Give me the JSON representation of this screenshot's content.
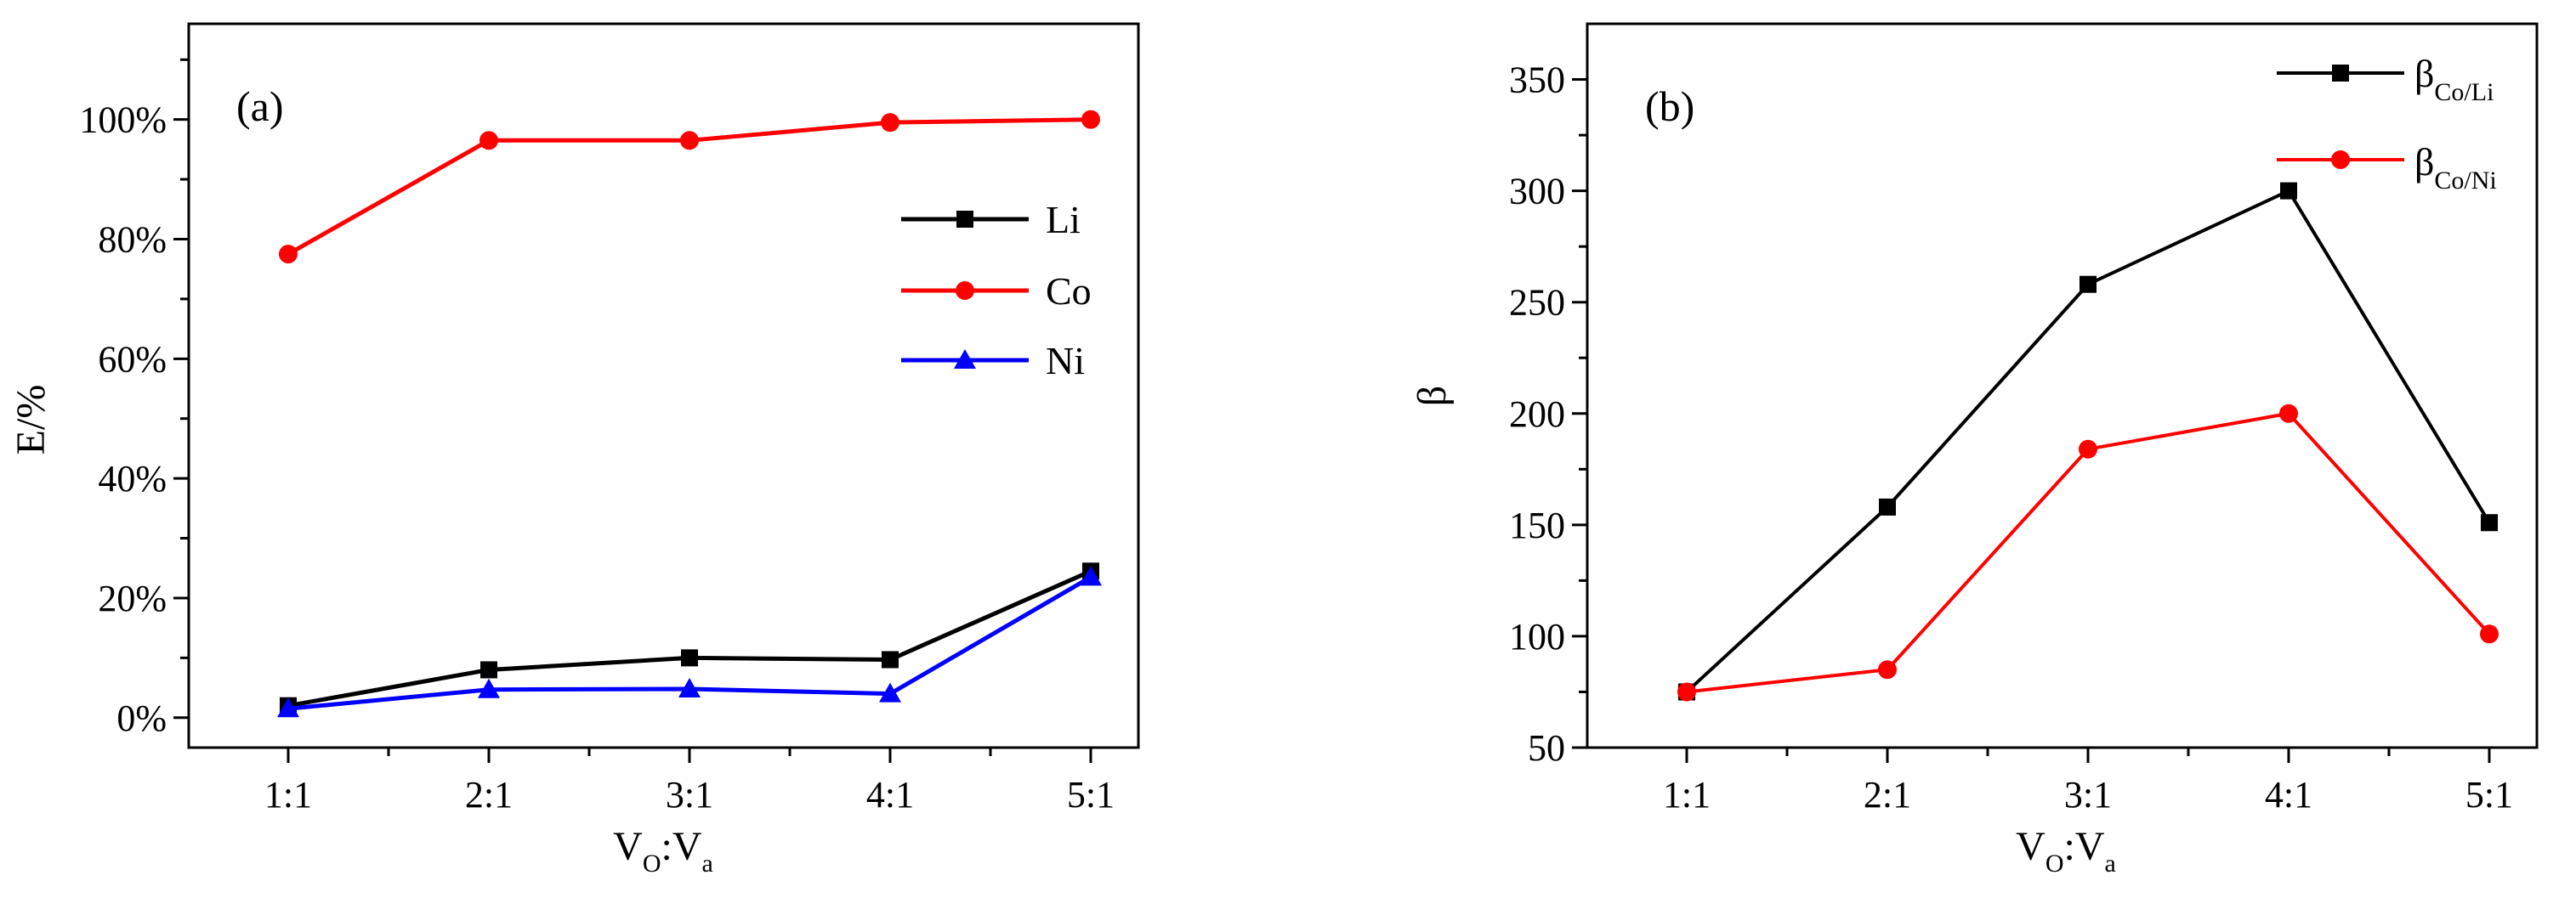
{
  "colors": {
    "black": "#000000",
    "red": "#ff0000",
    "blue": "#0000ff"
  },
  "chart_data": [
    {
      "type": "line",
      "panel": "(a)",
      "categories": [
        "1:1",
        "2:1",
        "3:1",
        "4:1",
        "5:1"
      ],
      "ylabel": "E/%",
      "xlabel_main": "V",
      "xlabel_sub1": "O",
      "xlabel_mid": ":V",
      "xlabel_sub2": "a",
      "ylim": [
        -0.05,
        1.16
      ],
      "yticks": [
        0,
        0.2,
        0.4,
        0.6,
        0.8,
        1.0
      ],
      "ytick_labels": [
        "0%",
        "20%",
        "40%",
        "60%",
        "80%",
        "100%"
      ],
      "legend_position": "right",
      "series": [
        {
          "name": "Li",
          "color": "#000000",
          "marker": "square",
          "values": [
            0.02,
            0.08,
            0.1,
            0.097,
            0.245
          ]
        },
        {
          "name": "Co",
          "color": "#ff0000",
          "marker": "circle",
          "values": [
            0.775,
            0.965,
            0.965,
            0.995,
            1.0
          ]
        },
        {
          "name": "Ni",
          "color": "#0000ff",
          "marker": "triangle",
          "values": [
            0.015,
            0.047,
            0.048,
            0.04,
            0.235
          ]
        }
      ]
    },
    {
      "type": "line",
      "panel": "(b)",
      "categories": [
        "1:1",
        "2:1",
        "3:1",
        "4:1",
        "5:1"
      ],
      "ylabel": "β",
      "xlabel_main": "V",
      "xlabel_sub1": "O",
      "xlabel_mid": ":V",
      "xlabel_sub2": "a",
      "ylim": [
        50,
        375
      ],
      "yticks": [
        50,
        100,
        150,
        200,
        250,
        300,
        350
      ],
      "ytick_labels": [
        "50",
        "100",
        "150",
        "200",
        "250",
        "300",
        "350"
      ],
      "legend_position": "top-right",
      "series": [
        {
          "name": "β",
          "name_sub": "Co/Li",
          "color": "#000000",
          "marker": "square",
          "values": [
            75,
            158,
            258,
            300,
            151
          ]
        },
        {
          "name": "β",
          "name_sub": "Co/Ni",
          "color": "#ff0000",
          "marker": "circle",
          "values": [
            75,
            85,
            184,
            200,
            101
          ]
        }
      ]
    }
  ]
}
